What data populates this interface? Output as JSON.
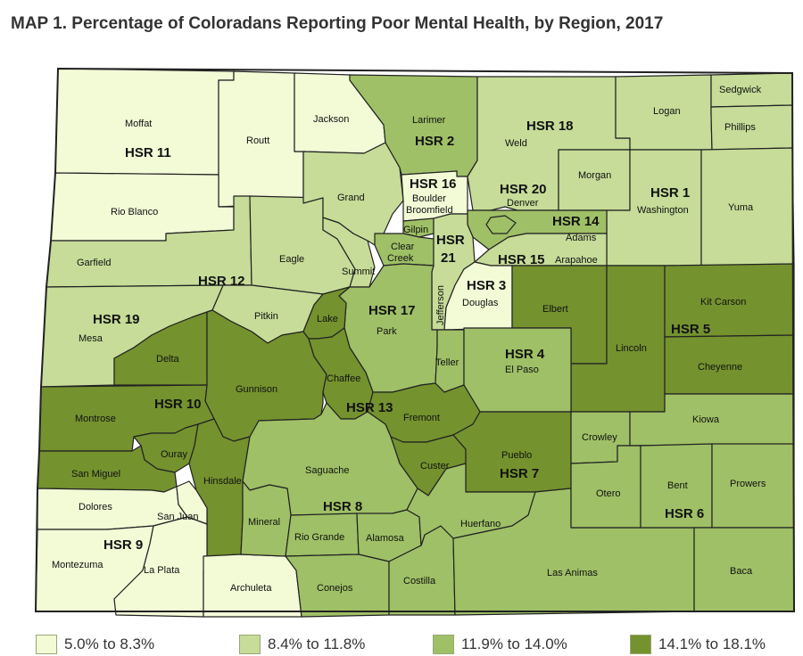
{
  "title": "MAP 1. Percentage of Coloradans Reporting Poor Mental Health, by Region, 2017",
  "colors": {
    "c1": "#f2fad6",
    "c2": "#c6dc98",
    "c3": "#9fc066",
    "c4": "#74922e",
    "border": "#222222"
  },
  "legend": [
    {
      "label": "5.0% to 8.3%",
      "color": "#f2fad6"
    },
    {
      "label": "8.4% to 11.8%",
      "color": "#c6dc98"
    },
    {
      "label": "11.9% to 14.0%",
      "color": "#9fc066"
    },
    {
      "label": "14.1% to 18.1%",
      "color": "#74922e"
    }
  ],
  "hsr_labels": [
    "HSR 11",
    "HSR 2",
    "HSR 18",
    "HSR 16",
    "HSR 20",
    "HSR 1",
    "HSR 14",
    "HSR 15",
    "HSR 21",
    "HSR 12",
    "HSR 3",
    "HSR 19",
    "HSR 17",
    "HSR 5",
    "HSR 4",
    "HSR 10",
    "HSR 13",
    "HSR 7",
    "HSR 8",
    "HSR 6",
    "HSR 9"
  ],
  "county_labels": [
    "Moffat",
    "Routt",
    "Jackson",
    "Larimer",
    "Weld",
    "Logan",
    "Sedgwick",
    "Phillips",
    "Morgan",
    "Washington",
    "Yuma",
    "Rio Blanco",
    "Grand",
    "Boulder",
    "Broomfield",
    "Denver",
    "Adams",
    "Arapahoe",
    "Gilpin",
    "Clear Creek",
    "Garfield",
    "Eagle",
    "Summit",
    "Jefferson",
    "Douglas",
    "Elbert",
    "Kit Carson",
    "Lincoln",
    "Cheyenne",
    "Mesa",
    "Pitkin",
    "Lake",
    "Park",
    "Delta",
    "Gunnison",
    "Chaffee",
    "Teller",
    "El Paso",
    "Fremont",
    "Montrose",
    "Ouray",
    "San Miguel",
    "Hinsdale",
    "Saguache",
    "Custer",
    "Pueblo",
    "Kiowa",
    "Crowley",
    "Otero",
    "Bent",
    "Prowers",
    "Dolores",
    "San Juan",
    "Mineral",
    "Rio Grande",
    "Alamosa",
    "Huerfano",
    "Montezuma",
    "La Plata",
    "Archuleta",
    "Conejos",
    "Costilla",
    "Las Animas",
    "Baca"
  ]
}
